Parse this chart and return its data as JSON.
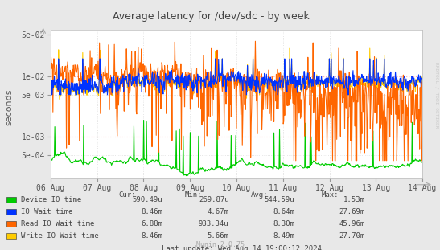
{
  "title": "Average latency for /dev/sdc - by week",
  "ylabel": "seconds",
  "background_color": "#e8e8e8",
  "plot_bg_color": "#ffffff",
  "grid_color": "#cccccc",
  "grid_dotted_color": "#dddddd",
  "ref_line_color": "#ffaaaa",
  "x_labels": [
    "06 Aug",
    "07 Aug",
    "08 Aug",
    "09 Aug",
    "10 Aug",
    "11 Aug",
    "12 Aug",
    "13 Aug",
    "14 Aug"
  ],
  "legend_items": [
    {
      "label": "Device IO time",
      "color": "#00cc00"
    },
    {
      "label": "IO Wait time",
      "color": "#0033ff"
    },
    {
      "label": "Read IO Wait time",
      "color": "#ff6600"
    },
    {
      "label": "Write IO Wait time",
      "color": "#ffcc00"
    }
  ],
  "legend_stats": [
    {
      "cur": "590.49u",
      "min": "269.87u",
      "avg": "544.59u",
      "max": "1.53m"
    },
    {
      "cur": "8.46m",
      "min": "4.67m",
      "avg": "8.64m",
      "max": "27.69m"
    },
    {
      "cur": "6.88m",
      "min": "933.34u",
      "avg": "8.30m",
      "max": "45.96m"
    },
    {
      "cur": "8.46m",
      "min": "5.66m",
      "avg": "8.49m",
      "max": "27.70m"
    }
  ],
  "footer": "Last update: Wed Aug 14 19:00:12 2024",
  "munin_version": "Munin 2.0.75",
  "watermark": "RRDTOOL / TOBI OETIKER",
  "ymin": 0.0002,
  "ymax": 0.06,
  "yticks": [
    0.0005,
    0.001,
    0.005,
    0.01,
    0.05
  ],
  "ytick_labels": [
    "5e-04",
    "1e-03",
    "5e-03",
    "1e-02",
    "5e-02"
  ],
  "ref_lines": [
    0.001,
    0.01
  ],
  "n_points": 800
}
